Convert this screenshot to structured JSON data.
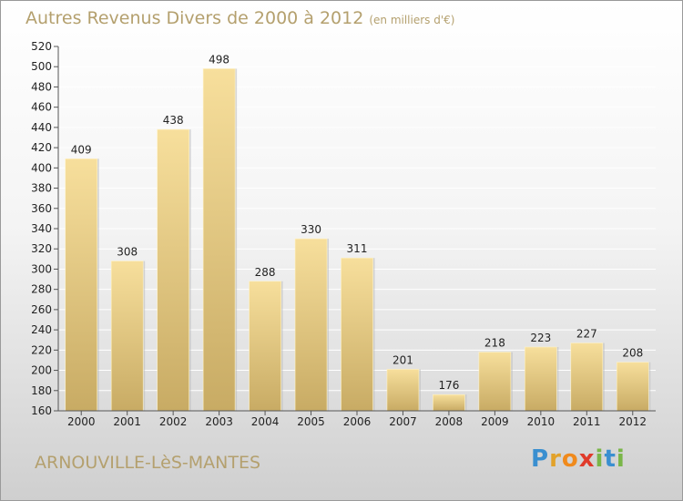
{
  "header": {
    "title": "Autres Revenus Divers de 2000 à 2012",
    "unit": "(en milliers d'€)"
  },
  "footer": {
    "commune": "ARNOUVILLE-LèS-MANTES"
  },
  "brand": {
    "letters": [
      "P",
      "r",
      "o",
      "x",
      "i",
      "t",
      "i"
    ],
    "colors": [
      "#3a8fd0",
      "#e2a22a",
      "#f08a1c",
      "#e03a2a",
      "#7ab648",
      "#3a8fd0",
      "#7ab648"
    ]
  },
  "colors": {
    "bar_light": "#f7df9c",
    "bar_dark": "#c8ab64",
    "grid": "#ffffff",
    "title": "#b4a06e"
  },
  "chart_data": {
    "type": "bar",
    "categories": [
      "2000",
      "2001",
      "2002",
      "2003",
      "2004",
      "2005",
      "2006",
      "2007",
      "2008",
      "2009",
      "2010",
      "2011",
      "2012"
    ],
    "values": [
      409,
      308,
      438,
      498,
      288,
      330,
      311,
      201,
      176,
      218,
      223,
      227,
      208
    ],
    "ylim": [
      160,
      520
    ],
    "yticks": [
      160,
      180,
      200,
      220,
      240,
      260,
      280,
      300,
      320,
      340,
      360,
      380,
      400,
      420,
      440,
      460,
      480,
      500,
      520
    ],
    "grid": true,
    "data_labels": true
  }
}
